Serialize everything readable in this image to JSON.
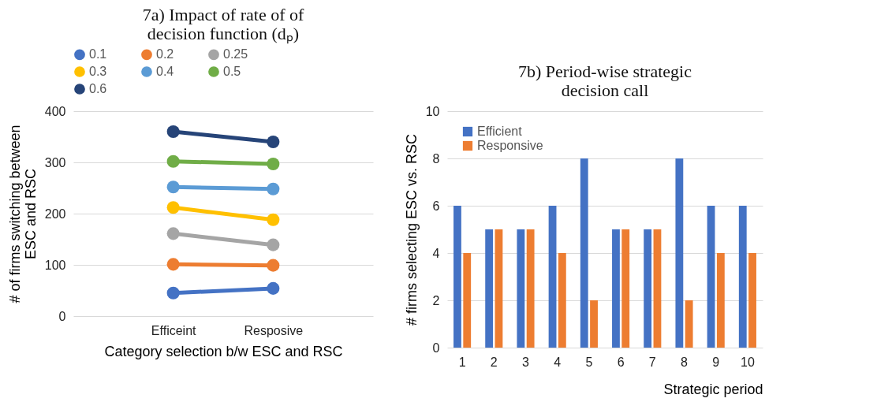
{
  "chart_data": [
    {
      "type": "line",
      "title": "7a) Impact of rate of of decision function (dₚ)",
      "xlabel": "Category selection b/w ESC and RSC",
      "ylabel": "# of firms switching between ESC and RSC",
      "categories": [
        "Efficeint",
        "Resposive"
      ],
      "ylim": [
        0,
        400
      ],
      "yticks": [
        0,
        100,
        200,
        300,
        400
      ],
      "grid": "y",
      "legend": "top",
      "marker": "circle",
      "line_style": "solid",
      "series": [
        {
          "name": "0.1",
          "color": "#4472c4",
          "values": [
            45,
            54
          ]
        },
        {
          "name": "0.2",
          "color": "#ed7d31",
          "values": [
            101,
            99
          ]
        },
        {
          "name": "0.25",
          "color": "#a5a5a5",
          "values": [
            161,
            139
          ]
        },
        {
          "name": "0.3",
          "color": "#ffc000",
          "values": [
            212,
            188
          ]
        },
        {
          "name": "0.4",
          "color": "#5b9bd5",
          "values": [
            252,
            248
          ]
        },
        {
          "name": "0.5",
          "color": "#70ad47",
          "values": [
            302,
            297
          ]
        },
        {
          "name": "0.6",
          "color": "#264478",
          "values": [
            360,
            340
          ]
        }
      ]
    },
    {
      "type": "bar",
      "title": "7b) Period-wise strategic decision call",
      "xlabel": "Strategic period",
      "ylabel": "# firms selecting ESC vs. RSC",
      "categories": [
        "1",
        "2",
        "3",
        "4",
        "5",
        "6",
        "7",
        "8",
        "9",
        "10"
      ],
      "ylim": [
        0,
        10
      ],
      "yticks": [
        0,
        2,
        4,
        6,
        8,
        10
      ],
      "grid": "y",
      "legend": "top left",
      "series": [
        {
          "name": "Efficient",
          "color": "#4472c4",
          "values": [
            6,
            5,
            5,
            6,
            8,
            5,
            5,
            8,
            6,
            6
          ]
        },
        {
          "name": "Responsive",
          "color": "#ed7d31",
          "values": [
            4,
            5,
            5,
            4,
            2,
            5,
            5,
            2,
            4,
            4
          ]
        }
      ]
    }
  ]
}
